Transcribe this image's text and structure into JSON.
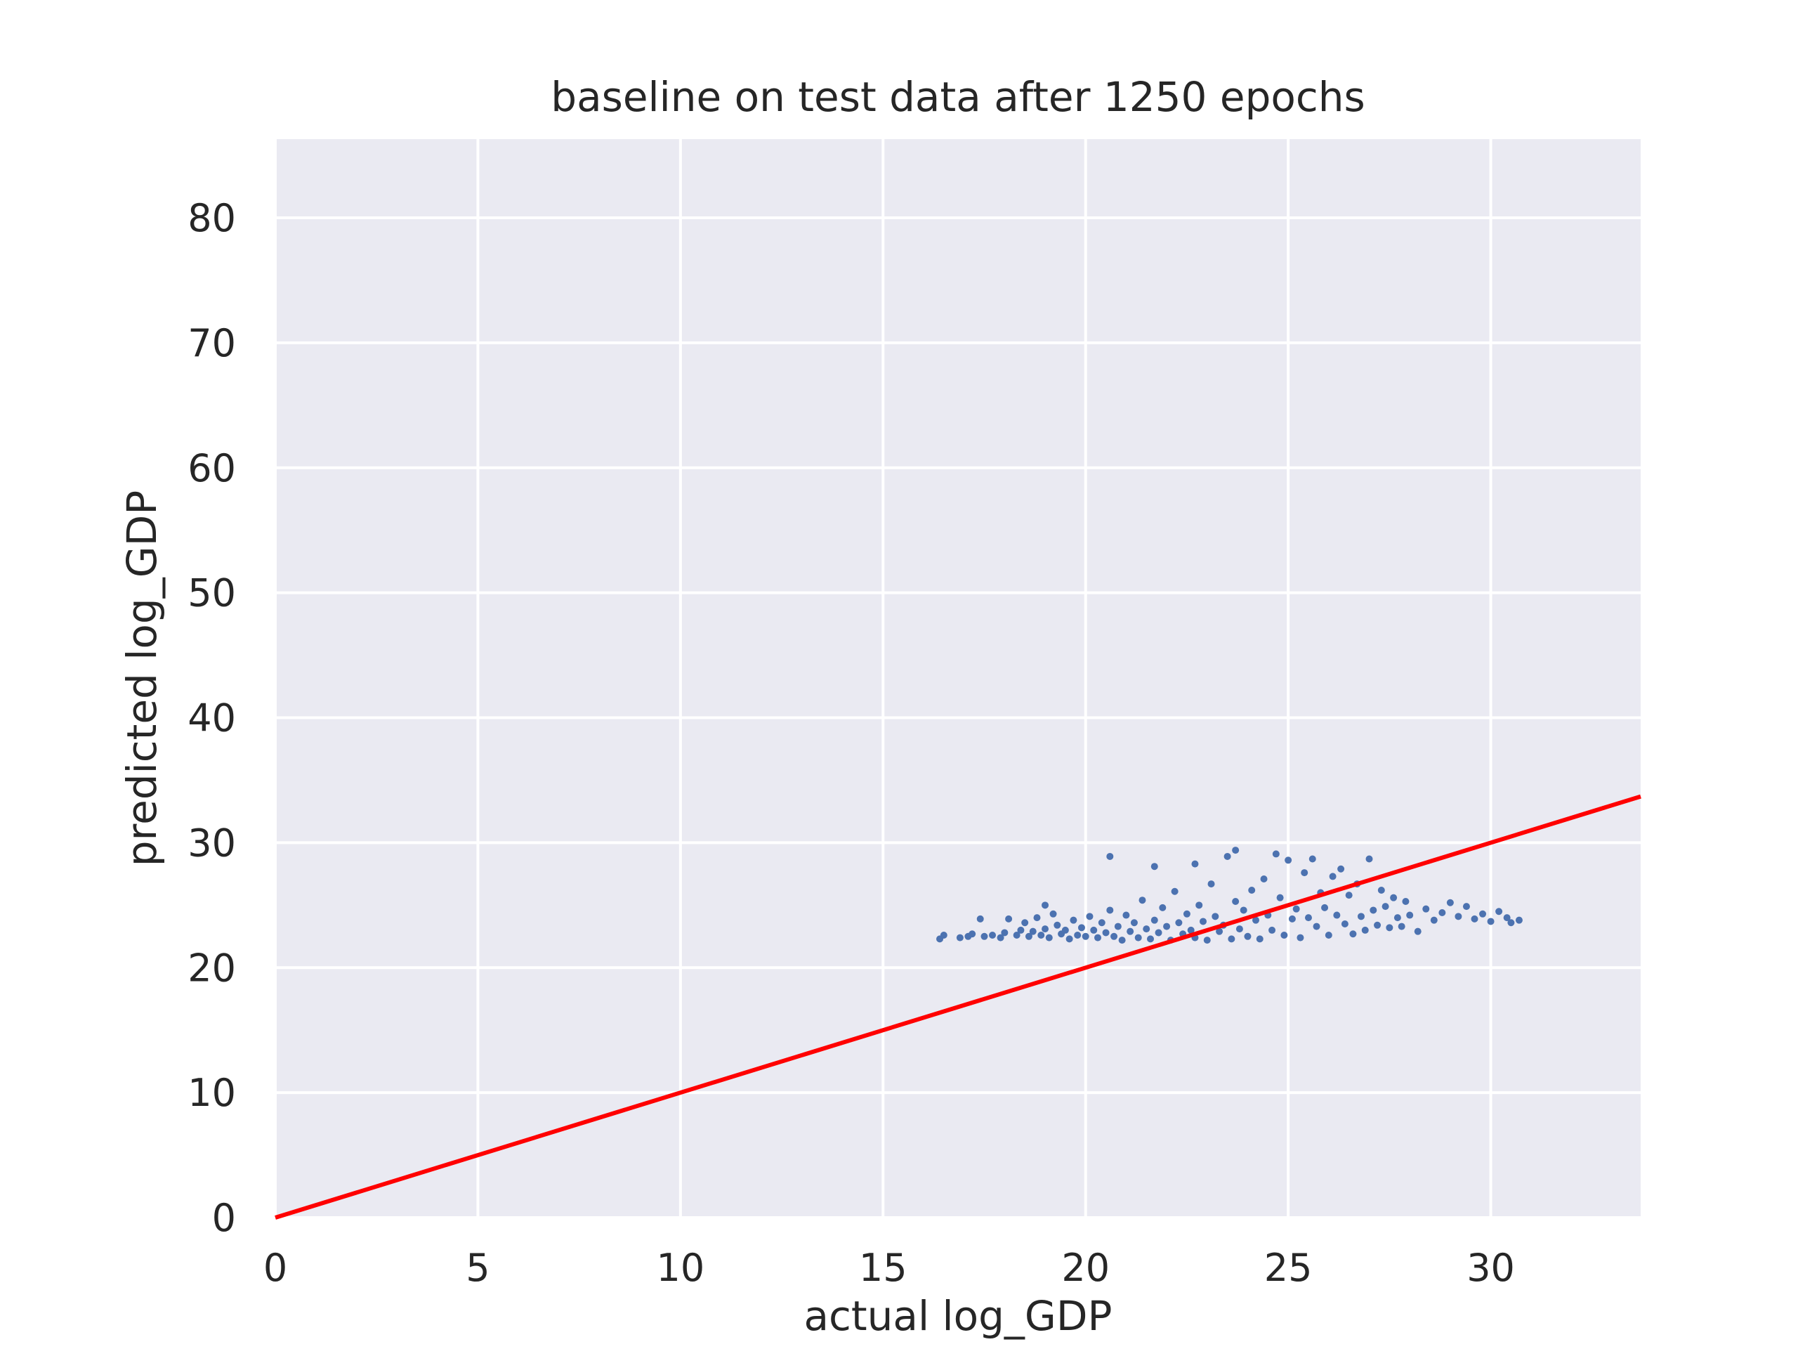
{
  "chart_data": {
    "type": "scatter",
    "title": "baseline on test data after 1250 epochs",
    "xlabel": "actual log_GDP",
    "ylabel": "predicted log_GDP",
    "xlim": [
      0,
      33.7
    ],
    "ylim": [
      0,
      86.3
    ],
    "xticks": [
      0,
      5,
      10,
      15,
      20,
      25,
      30
    ],
    "yticks": [
      0,
      10,
      20,
      30,
      40,
      50,
      60,
      70,
      80
    ],
    "grid": true,
    "legend": "none",
    "colors": {
      "background": "#eaeaf2",
      "grid": "#ffffff",
      "points": "#4c72b0",
      "line": "#ff0000"
    },
    "reference_line": {
      "x": [
        0,
        33.7
      ],
      "y": [
        0,
        33.7
      ]
    },
    "series": [
      {
        "points": [
          [
            16.4,
            22.3
          ],
          [
            16.5,
            22.6
          ],
          [
            16.9,
            22.4
          ],
          [
            17.1,
            22.5
          ],
          [
            17.2,
            22.7
          ],
          [
            17.4,
            23.9
          ],
          [
            17.5,
            22.5
          ],
          [
            17.7,
            22.6
          ],
          [
            17.9,
            22.4
          ],
          [
            18.0,
            22.8
          ],
          [
            18.1,
            23.9
          ],
          [
            18.3,
            22.6
          ],
          [
            18.4,
            23.0
          ],
          [
            18.5,
            23.6
          ],
          [
            18.6,
            22.5
          ],
          [
            18.7,
            22.9
          ],
          [
            18.8,
            24.0
          ],
          [
            18.9,
            22.6
          ],
          [
            19.0,
            25.0
          ],
          [
            19.0,
            23.1
          ],
          [
            19.1,
            22.4
          ],
          [
            19.2,
            24.3
          ],
          [
            19.3,
            23.4
          ],
          [
            19.4,
            22.7
          ],
          [
            19.5,
            23.0
          ],
          [
            19.6,
            22.3
          ],
          [
            19.7,
            23.8
          ],
          [
            19.8,
            22.6
          ],
          [
            19.9,
            23.2
          ],
          [
            20.0,
            22.5
          ],
          [
            20.1,
            24.1
          ],
          [
            20.2,
            23.0
          ],
          [
            20.3,
            22.4
          ],
          [
            20.4,
            23.6
          ],
          [
            20.5,
            22.8
          ],
          [
            20.6,
            28.9
          ],
          [
            20.6,
            24.6
          ],
          [
            20.7,
            22.5
          ],
          [
            20.8,
            23.3
          ],
          [
            20.9,
            22.2
          ],
          [
            21.0,
            24.2
          ],
          [
            21.1,
            22.9
          ],
          [
            21.2,
            23.6
          ],
          [
            21.3,
            22.4
          ],
          [
            21.4,
            25.4
          ],
          [
            21.5,
            23.1
          ],
          [
            21.6,
            22.3
          ],
          [
            21.7,
            28.1
          ],
          [
            21.7,
            23.8
          ],
          [
            21.8,
            22.8
          ],
          [
            21.9,
            24.8
          ],
          [
            22.0,
            23.3
          ],
          [
            22.1,
            22.2
          ],
          [
            22.2,
            26.1
          ],
          [
            22.3,
            23.6
          ],
          [
            22.4,
            22.7
          ],
          [
            22.5,
            24.3
          ],
          [
            22.6,
            23.0
          ],
          [
            22.7,
            28.3
          ],
          [
            22.7,
            22.4
          ],
          [
            22.8,
            25.0
          ],
          [
            22.9,
            23.7
          ],
          [
            23.0,
            22.2
          ],
          [
            23.1,
            26.7
          ],
          [
            23.2,
            24.1
          ],
          [
            23.3,
            22.9
          ],
          [
            23.4,
            23.4
          ],
          [
            23.5,
            28.9
          ],
          [
            23.6,
            22.3
          ],
          [
            23.7,
            29.4
          ],
          [
            23.7,
            25.3
          ],
          [
            23.8,
            23.1
          ],
          [
            23.9,
            24.6
          ],
          [
            24.0,
            22.5
          ],
          [
            24.1,
            26.2
          ],
          [
            24.2,
            23.8
          ],
          [
            24.3,
            22.3
          ],
          [
            24.4,
            27.1
          ],
          [
            24.5,
            24.2
          ],
          [
            24.6,
            23.0
          ],
          [
            24.7,
            29.1
          ],
          [
            24.8,
            25.6
          ],
          [
            24.9,
            22.6
          ],
          [
            25.0,
            28.6
          ],
          [
            25.1,
            23.9
          ],
          [
            25.2,
            24.7
          ],
          [
            25.3,
            22.4
          ],
          [
            25.4,
            27.6
          ],
          [
            25.5,
            24.0
          ],
          [
            25.6,
            28.7
          ],
          [
            25.7,
            23.3
          ],
          [
            25.8,
            26.0
          ],
          [
            25.9,
            24.8
          ],
          [
            26.0,
            22.6
          ],
          [
            26.1,
            27.3
          ],
          [
            26.2,
            24.2
          ],
          [
            26.3,
            27.9
          ],
          [
            26.4,
            23.5
          ],
          [
            26.5,
            25.8
          ],
          [
            26.6,
            22.7
          ],
          [
            26.7,
            26.7
          ],
          [
            26.8,
            24.1
          ],
          [
            26.9,
            23.0
          ],
          [
            27.0,
            28.7
          ],
          [
            27.1,
            24.6
          ],
          [
            27.2,
            23.4
          ],
          [
            27.3,
            26.2
          ],
          [
            27.4,
            24.9
          ],
          [
            27.5,
            23.2
          ],
          [
            27.6,
            25.6
          ],
          [
            27.7,
            24.0
          ],
          [
            27.8,
            23.3
          ],
          [
            27.9,
            25.3
          ],
          [
            28.0,
            24.2
          ],
          [
            28.2,
            22.9
          ],
          [
            28.4,
            24.7
          ],
          [
            28.6,
            23.8
          ],
          [
            28.8,
            24.4
          ],
          [
            29.0,
            25.2
          ],
          [
            29.2,
            24.1
          ],
          [
            29.4,
            24.9
          ],
          [
            29.6,
            23.9
          ],
          [
            29.8,
            24.3
          ],
          [
            30.0,
            23.7
          ],
          [
            30.2,
            24.5
          ],
          [
            30.4,
            24.0
          ],
          [
            30.5,
            23.6
          ],
          [
            30.7,
            23.8
          ]
        ]
      }
    ]
  }
}
